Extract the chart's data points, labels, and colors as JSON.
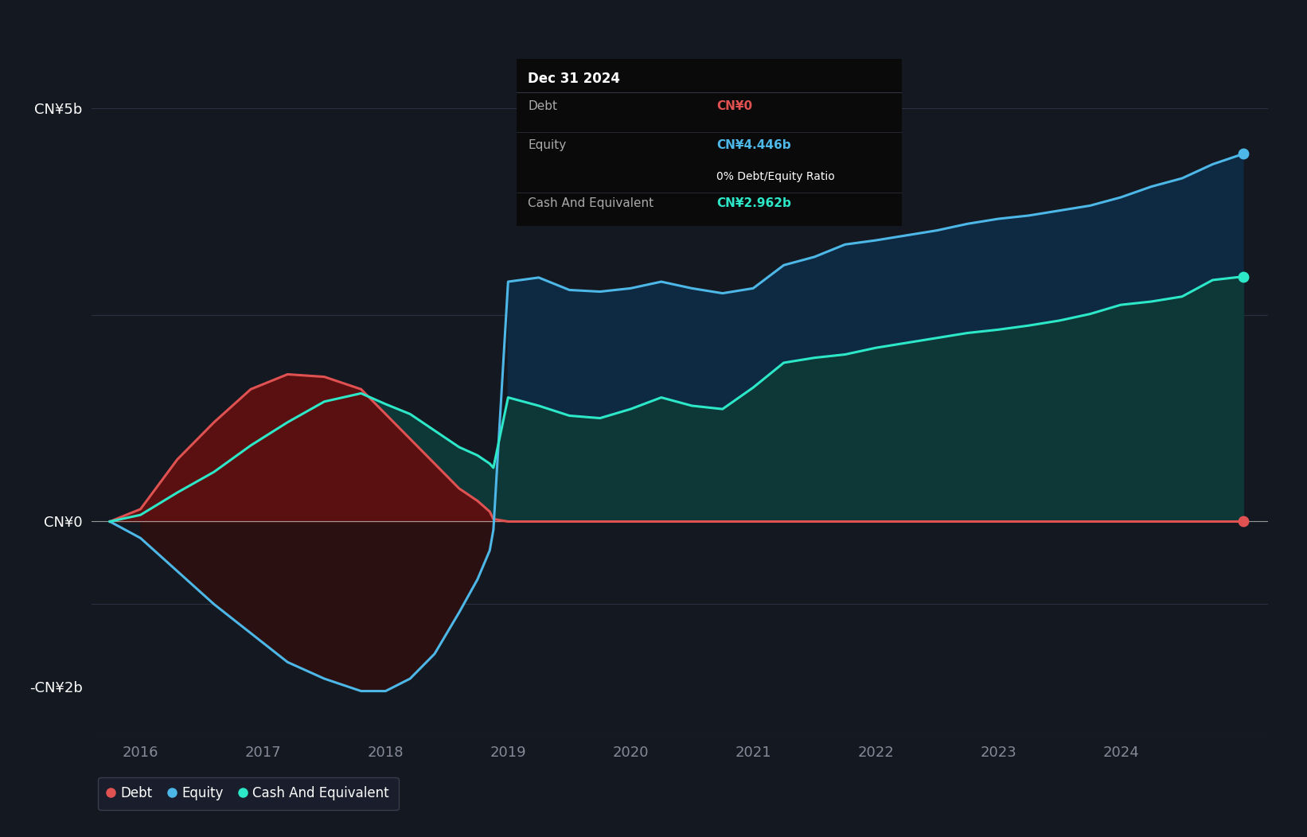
{
  "background_color": "#141820",
  "plot_bg_color": "#141820",
  "grid_color": "#2a3040",
  "zero_line_color": "#cccccc",
  "debt_color": "#e05252",
  "equity_color": "#4db8e8",
  "cash_color": "#2de8c8",
  "debt_fill_color": "#5a1010",
  "equity_fill_color": "#0e2a42",
  "cash_fill_color": "#0e3838",
  "neg_equity_fill": "#2a1010",
  "xlim": [
    2015.6,
    2025.2
  ],
  "ylim": [
    -2600000000.0,
    5800000000.0
  ],
  "ytick_vals": [
    5000000000.0,
    2500000000.0,
    0,
    -1000000000.0,
    -2000000000.0
  ],
  "ytick_labels": [
    "CN¥5b",
    "",
    "CN¥0",
    "",
    "-CN¥2b"
  ],
  "xtick_vals": [
    2016,
    2017,
    2018,
    2019,
    2020,
    2021,
    2022,
    2023,
    2024
  ],
  "tooltip_date": "Dec 31 2024",
  "tooltip_debt_label": "Debt",
  "tooltip_debt_value": "CN¥0",
  "tooltip_equity_label": "Equity",
  "tooltip_equity_value": "CN¥4.446b",
  "tooltip_ratio": "0% Debt/Equity Ratio",
  "tooltip_cash_label": "Cash And Equivalent",
  "tooltip_cash_value": "CN¥2.962b",
  "legend_items": [
    "Debt",
    "Equity",
    "Cash And Equivalent"
  ],
  "legend_colors": [
    "#e05252",
    "#4db8e8",
    "#2de8c8"
  ],
  "years_equity": [
    2015.75,
    2016.0,
    2016.3,
    2016.6,
    2016.9,
    2017.2,
    2017.5,
    2017.8,
    2018.0,
    2018.2,
    2018.4,
    2018.6,
    2018.75,
    2018.85,
    2018.88,
    2019.0,
    2019.25,
    2019.5,
    2019.75,
    2020.0,
    2020.25,
    2020.5,
    2020.75,
    2021.0,
    2021.25,
    2021.5,
    2021.75,
    2022.0,
    2022.25,
    2022.5,
    2022.75,
    2023.0,
    2023.25,
    2023.5,
    2023.75,
    2024.0,
    2024.25,
    2024.5,
    2024.75,
    2025.0
  ],
  "equity_values": [
    0,
    -200000000.0,
    -600000000.0,
    -1000000000.0,
    -1350000000.0,
    -1700000000.0,
    -1900000000.0,
    -2050000000.0,
    -2050000000.0,
    -1900000000.0,
    -1600000000.0,
    -1100000000.0,
    -700000000.0,
    -350000000.0,
    -100000000.0,
    2900000000.0,
    2950000000.0,
    2800000000.0,
    2780000000.0,
    2820000000.0,
    2900000000.0,
    2820000000.0,
    2760000000.0,
    2820000000.0,
    3100000000.0,
    3200000000.0,
    3350000000.0,
    3400000000.0,
    3460000000.0,
    3520000000.0,
    3600000000.0,
    3660000000.0,
    3700000000.0,
    3760000000.0,
    3820000000.0,
    3920000000.0,
    4050000000.0,
    4150000000.0,
    4320000000.0,
    4446000000.0
  ],
  "years_debt": [
    2015.75,
    2016.0,
    2016.3,
    2016.6,
    2016.9,
    2017.2,
    2017.5,
    2017.8,
    2018.0,
    2018.2,
    2018.4,
    2018.6,
    2018.75,
    2018.85,
    2018.88,
    2019.0,
    2025.0
  ],
  "debt_values": [
    0,
    150000000.0,
    750000000.0,
    1200000000.0,
    1600000000.0,
    1780000000.0,
    1750000000.0,
    1600000000.0,
    1300000000.0,
    1000000000.0,
    700000000.0,
    400000000.0,
    250000000.0,
    120000000.0,
    30000000.0,
    0,
    0
  ],
  "years_cash": [
    2015.75,
    2016.0,
    2016.3,
    2016.6,
    2016.9,
    2017.2,
    2017.5,
    2017.8,
    2018.0,
    2018.2,
    2018.4,
    2018.6,
    2018.75,
    2018.85,
    2018.88,
    2019.0,
    2019.25,
    2019.5,
    2019.75,
    2020.0,
    2020.25,
    2020.5,
    2020.75,
    2021.0,
    2021.25,
    2021.5,
    2021.75,
    2022.0,
    2022.25,
    2022.5,
    2022.75,
    2023.0,
    2023.25,
    2023.5,
    2023.75,
    2024.0,
    2024.25,
    2024.5,
    2024.75,
    2025.0
  ],
  "cash_values": [
    0,
    80000000.0,
    350000000.0,
    600000000.0,
    920000000.0,
    1200000000.0,
    1450000000.0,
    1550000000.0,
    1420000000.0,
    1300000000.0,
    1100000000.0,
    900000000.0,
    800000000.0,
    700000000.0,
    650000000.0,
    1500000000.0,
    1400000000.0,
    1280000000.0,
    1250000000.0,
    1360000000.0,
    1500000000.0,
    1400000000.0,
    1360000000.0,
    1620000000.0,
    1920000000.0,
    1980000000.0,
    2020000000.0,
    2100000000.0,
    2160000000.0,
    2220000000.0,
    2280000000.0,
    2320000000.0,
    2370000000.0,
    2430000000.0,
    2510000000.0,
    2620000000.0,
    2660000000.0,
    2720000000.0,
    2920000000.0,
    2962000000.0
  ]
}
